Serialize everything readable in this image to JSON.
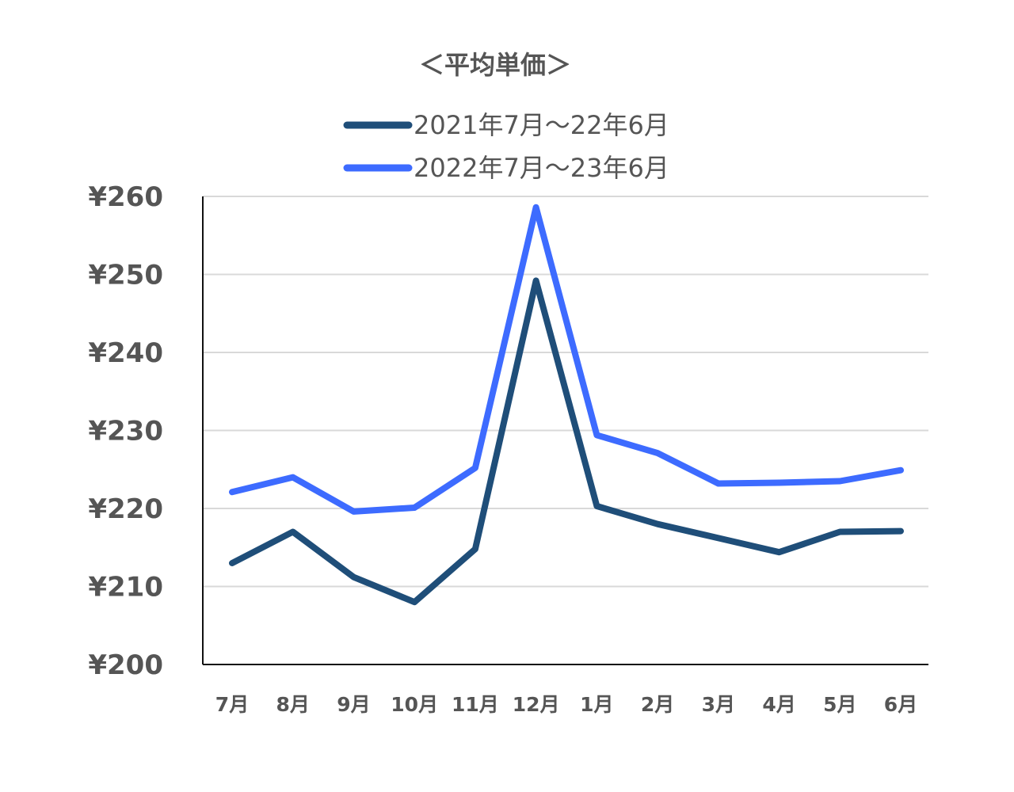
{
  "chart_data": {
    "type": "line",
    "title": "＜平均単価＞",
    "categories": [
      "7月",
      "8月",
      "9月",
      "10月",
      "11月",
      "12月",
      "1月",
      "2月",
      "3月",
      "4月",
      "5月",
      "6月"
    ],
    "ylim": [
      200,
      260
    ],
    "yticks": [
      200,
      210,
      220,
      230,
      240,
      250,
      260
    ],
    "ytick_labels": [
      "¥200",
      "¥210",
      "¥220",
      "¥230",
      "¥240",
      "¥250",
      "¥260"
    ],
    "grid": true,
    "legend_position": "top",
    "series": [
      {
        "name": "2021年7月～22年6月",
        "color": "#1f4e79",
        "values": [
          213.0,
          217.0,
          211.2,
          208.0,
          214.8,
          249.2,
          220.3,
          218.0,
          216.2,
          214.4,
          217.0,
          217.1
        ]
      },
      {
        "name": "2022年7月～23年6月",
        "color": "#3d6bff",
        "values": [
          222.1,
          224.0,
          219.6,
          220.1,
          225.2,
          258.6,
          229.4,
          227.1,
          223.2,
          223.3,
          223.5,
          224.9
        ]
      }
    ]
  }
}
